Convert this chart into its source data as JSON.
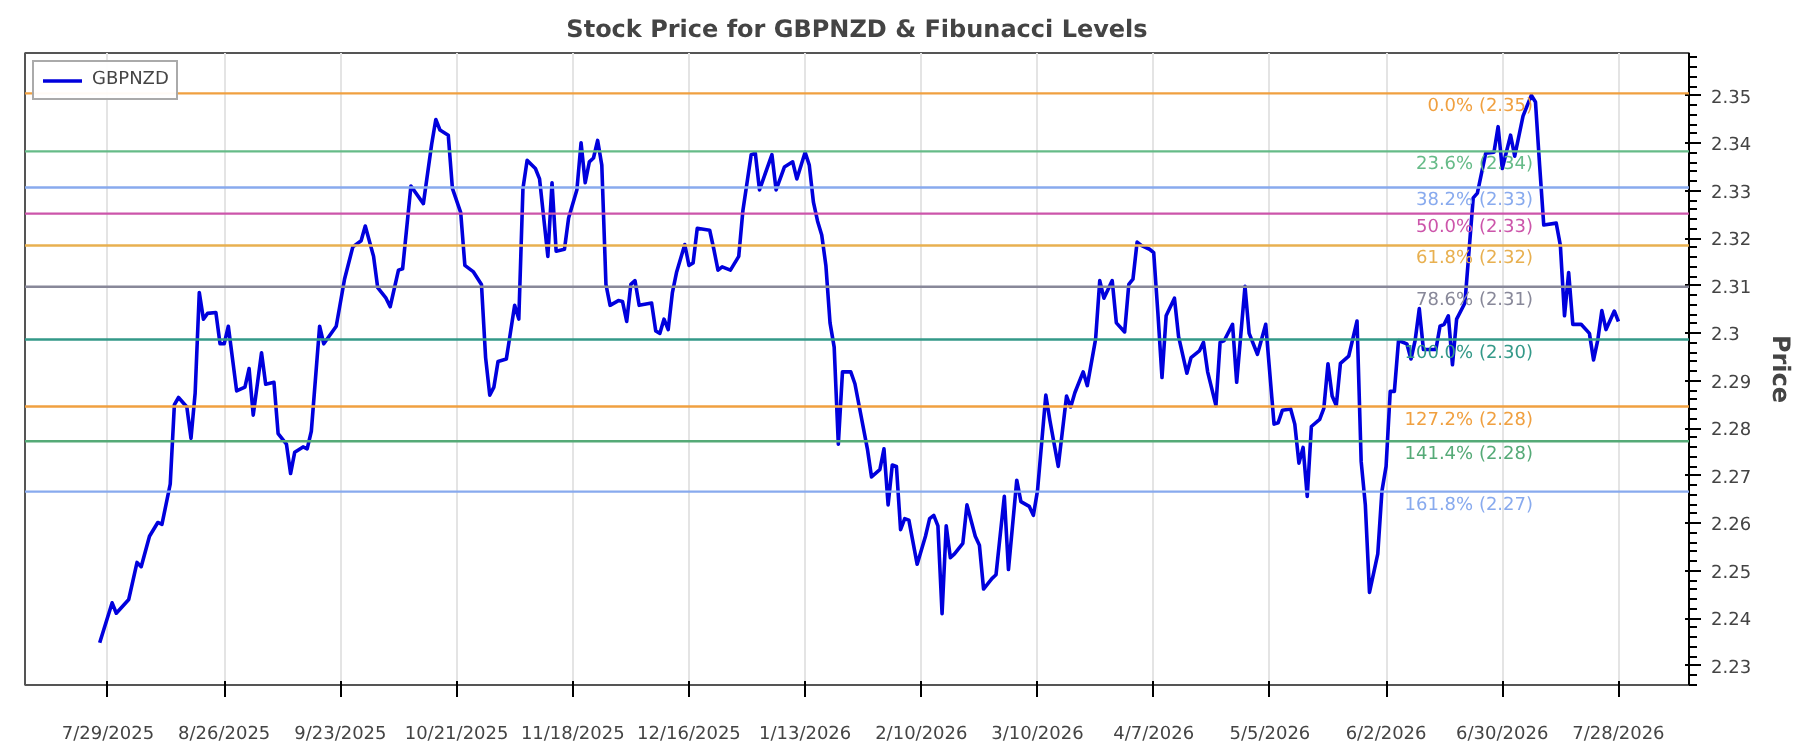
{
  "chart_data": {
    "type": "line",
    "title": "Stock Price for GBPNZD & Fibunacci Levels",
    "ylabel": "Price",
    "xlim": [
      "2025-07-09",
      "2026-08-14"
    ],
    "ylim": [
      2.226,
      2.359
    ],
    "xticks": [
      {
        "value": "2025-07-29",
        "label": "7/29/2025"
      },
      {
        "value": "2025-08-26",
        "label": "8/26/2025"
      },
      {
        "value": "2025-09-23",
        "label": "9/23/2025"
      },
      {
        "value": "2025-10-21",
        "label": "10/21/2025"
      },
      {
        "value": "2025-11-18",
        "label": "11/18/2025"
      },
      {
        "value": "2025-12-16",
        "label": "12/16/2025"
      },
      {
        "value": "2026-01-13",
        "label": "1/13/2026"
      },
      {
        "value": "2026-02-10",
        "label": "2/10/2026"
      },
      {
        "value": "2026-03-10",
        "label": "3/10/2026"
      },
      {
        "value": "2026-04-07",
        "label": "4/7/2026"
      },
      {
        "value": "2026-05-05",
        "label": "5/5/2026"
      },
      {
        "value": "2026-06-02",
        "label": "6/2/2026"
      },
      {
        "value": "2026-06-30",
        "label": "6/30/2026"
      },
      {
        "value": "2026-07-28",
        "label": "7/28/2026"
      }
    ],
    "yticks": [
      2.23,
      2.24,
      2.25,
      2.26,
      2.27,
      2.28,
      2.29,
      2.3,
      2.31,
      2.32,
      2.33,
      2.34,
      2.35
    ],
    "grid": "x",
    "legend": "top left",
    "line_style": "solid",
    "ref_lines": [
      {
        "axis": "y",
        "value": 2.3505,
        "label": "0.0% (2.35)",
        "color": "#f0a040"
      },
      {
        "axis": "y",
        "value": 2.3383,
        "label": "23.6% (2.34)",
        "color": "#66bb88"
      },
      {
        "axis": "y",
        "value": 2.3307,
        "label": "38.2% (2.33)",
        "color": "#88aaee"
      },
      {
        "axis": "y",
        "value": 2.3252,
        "label": "50.0% (2.33)",
        "color": "#cc55aa"
      },
      {
        "axis": "y",
        "value": 2.3185,
        "label": "61.8% (2.32)",
        "color": "#e8b050"
      },
      {
        "axis": "y",
        "value": 2.3098,
        "label": "78.6% (2.31)",
        "color": "#888899"
      },
      {
        "axis": "y",
        "value": 2.2987,
        "label": "100.0% (2.30)",
        "color": "#339988"
      },
      {
        "axis": "y",
        "value": 2.2846,
        "label": "127.2% (2.28)",
        "color": "#f0a040"
      },
      {
        "axis": "y",
        "value": 2.2773,
        "label": "141.4% (2.28)",
        "color": "#55aa77"
      },
      {
        "axis": "y",
        "value": 2.2667,
        "label": "161.8% (2.27)",
        "color": "#88aaee"
      }
    ],
    "series": [
      {
        "name": "GBPNZD",
        "color": "#0000dd",
        "x": [
          "2025-07-27",
          "2025-07-30",
          "2025-07-31",
          "2025-08-03",
          "2025-08-05",
          "2025-08-06",
          "2025-08-08",
          "2025-08-10",
          "2025-08-11",
          "2025-08-13",
          "2025-08-14",
          "2025-08-15",
          "2025-08-17",
          "2025-08-18",
          "2025-08-19",
          "2025-08-20",
          "2025-08-21",
          "2025-08-22",
          "2025-08-24",
          "2025-08-25",
          "2025-08-26",
          "2025-08-27",
          "2025-08-29",
          "2025-08-31",
          "2025-09-01",
          "2025-09-02",
          "2025-09-04",
          "2025-09-05",
          "2025-09-07",
          "2025-09-08",
          "2025-09-10",
          "2025-09-11",
          "2025-09-12",
          "2025-09-14",
          "2025-09-15",
          "2025-09-16",
          "2025-09-18",
          "2025-09-19",
          "2025-09-22",
          "2025-09-24",
          "2025-09-26",
          "2025-09-28",
          "2025-09-29",
          "2025-10-01",
          "2025-10-02",
          "2025-10-04",
          "2025-10-05",
          "2025-10-07",
          "2025-10-08",
          "2025-10-10",
          "2025-10-13",
          "2025-10-15",
          "2025-10-16",
          "2025-10-17",
          "2025-10-19",
          "2025-10-20",
          "2025-10-22",
          "2025-10-23",
          "2025-10-25",
          "2025-10-27",
          "2025-10-28",
          "2025-10-29",
          "2025-10-30",
          "2025-10-31",
          "2025-11-02",
          "2025-11-04",
          "2025-11-05",
          "2025-11-06",
          "2025-11-07",
          "2025-11-09",
          "2025-11-10",
          "2025-11-12",
          "2025-11-13",
          "2025-11-14",
          "2025-11-16",
          "2025-11-17",
          "2025-11-19",
          "2025-11-20",
          "2025-11-21",
          "2025-11-22",
          "2025-11-23",
          "2025-11-24",
          "2025-11-25",
          "2025-11-26",
          "2025-11-27",
          "2025-11-29",
          "2025-11-30",
          "2025-12-01",
          "2025-12-02",
          "2025-12-03",
          "2025-12-04",
          "2025-12-07",
          "2025-12-08",
          "2025-12-09",
          "2025-12-10",
          "2025-12-11",
          "2025-12-12",
          "2025-12-13",
          "2025-12-15",
          "2025-12-16",
          "2025-12-17",
          "2025-12-18",
          "2025-12-21",
          "2025-12-22",
          "2025-12-23",
          "2025-12-24",
          "2025-12-26",
          "2025-12-28",
          "2025-12-29",
          "2025-12-31",
          "2026-01-01",
          "2026-01-02",
          "2026-01-05",
          "2026-01-06",
          "2026-01-08",
          "2026-01-10",
          "2026-01-11",
          "2026-01-13",
          "2026-01-14",
          "2026-01-15",
          "2026-01-16",
          "2026-01-17",
          "2026-01-18",
          "2026-01-19",
          "2026-01-20",
          "2026-01-21",
          "2026-01-22",
          "2026-01-24",
          "2026-01-25",
          "2026-01-28",
          "2026-01-29",
          "2026-01-31",
          "2026-02-01",
          "2026-02-02",
          "2026-02-03",
          "2026-02-04",
          "2026-02-05",
          "2026-02-06",
          "2026-02-07",
          "2026-02-09",
          "2026-02-11",
          "2026-02-12",
          "2026-02-13",
          "2026-02-14",
          "2026-02-15",
          "2026-02-16",
          "2026-02-17",
          "2026-02-18",
          "2026-02-20",
          "2026-02-21",
          "2026-02-23",
          "2026-02-24",
          "2026-02-25",
          "2026-02-27",
          "2026-02-28",
          "2026-03-02",
          "2026-03-03",
          "2026-03-05",
          "2026-03-06",
          "2026-03-08",
          "2026-03-09",
          "2026-03-10",
          "2026-03-12",
          "2026-03-13",
          "2026-03-15",
          "2026-03-17",
          "2026-03-18",
          "2026-03-19",
          "2026-03-21",
          "2026-03-22",
          "2026-03-24",
          "2026-03-25",
          "2026-03-26",
          "2026-03-28",
          "2026-03-29",
          "2026-03-31",
          "2026-04-01",
          "2026-04-02",
          "2026-04-03",
          "2026-04-04",
          "2026-04-06",
          "2026-04-07",
          "2026-04-08",
          "2026-04-09",
          "2026-04-10",
          "2026-04-12",
          "2026-04-13",
          "2026-04-15",
          "2026-04-16",
          "2026-04-18",
          "2026-04-19",
          "2026-04-20",
          "2026-04-22",
          "2026-04-23",
          "2026-04-24",
          "2026-04-26",
          "2026-04-27",
          "2026-04-29",
          "2026-04-30",
          "2026-05-02",
          "2026-05-04",
          "2026-05-06",
          "2026-05-07",
          "2026-05-08",
          "2026-05-10",
          "2026-05-11",
          "2026-05-12",
          "2026-05-13",
          "2026-05-14",
          "2026-05-15",
          "2026-05-17",
          "2026-05-18",
          "2026-05-19",
          "2026-05-20",
          "2026-05-21",
          "2026-05-22",
          "2026-05-24",
          "2026-05-26",
          "2026-05-27",
          "2026-05-28",
          "2026-05-29",
          "2026-05-31",
          "2026-06-01",
          "2026-06-02",
          "2026-06-03",
          "2026-06-04",
          "2026-06-05",
          "2026-06-07",
          "2026-06-08",
          "2026-06-09",
          "2026-06-10",
          "2026-06-11",
          "2026-06-13",
          "2026-06-14",
          "2026-06-15",
          "2026-06-16",
          "2026-06-17",
          "2026-06-18",
          "2026-06-19",
          "2026-06-21",
          "2026-06-23",
          "2026-06-24",
          "2026-06-26",
          "2026-06-28",
          "2026-06-29",
          "2026-06-30",
          "2026-07-02",
          "2026-07-03",
          "2026-07-05",
          "2026-07-07",
          "2026-07-08",
          "2026-07-09",
          "2026-07-10",
          "2026-07-13",
          "2026-07-14",
          "2026-07-15",
          "2026-07-16",
          "2026-07-17",
          "2026-07-19",
          "2026-07-21",
          "2026-07-22",
          "2026-07-23",
          "2026-07-24",
          "2026-07-25",
          "2026-07-27",
          "2026-07-28"
        ],
        "values": [
          2.2349,
          2.2433,
          2.2411,
          2.244,
          2.2518,
          2.2509,
          2.2573,
          2.2602,
          2.2598,
          2.2683,
          2.285,
          2.2865,
          2.2845,
          2.2779,
          2.2874,
          2.3086,
          2.303,
          2.3042,
          2.3044,
          2.2978,
          2.2978,
          2.3015,
          2.2879,
          2.2887,
          2.2926,
          2.2828,
          2.2959,
          2.2893,
          2.2897,
          2.2789,
          2.2767,
          2.2705,
          2.275,
          2.2761,
          2.2757,
          2.2794,
          2.3015,
          2.2978,
          2.3015,
          2.3114,
          2.3182,
          2.3195,
          2.3226,
          2.3162,
          2.3096,
          2.3074,
          2.3056,
          2.3133,
          2.3136,
          2.331,
          2.3273,
          2.3398,
          2.345,
          2.3428,
          2.3417,
          2.3305,
          2.3254,
          2.3143,
          2.313,
          2.3103,
          2.2949,
          2.287,
          2.2887,
          2.2941,
          2.2946,
          2.3059,
          2.303,
          2.3305,
          2.3364,
          2.3347,
          2.3325,
          2.3162,
          2.3317,
          2.3173,
          2.3177,
          2.3243,
          2.3302,
          2.3401,
          2.3317,
          2.3361,
          2.3369,
          2.3406,
          2.3354,
          2.3103,
          2.3059,
          2.3069,
          2.3067,
          2.3025,
          2.3103,
          2.3111,
          2.3059,
          2.3064,
          2.3005,
          2.3,
          2.303,
          2.3008,
          2.3085,
          2.3128,
          2.3187,
          2.3143,
          2.3148,
          2.3221,
          2.3217,
          2.3177,
          2.3133,
          2.314,
          2.3133,
          2.3162,
          2.3258,
          2.3376,
          2.3379,
          2.3302,
          2.3376,
          2.3302,
          2.335,
          2.3361,
          2.3325,
          2.3381,
          2.3354,
          2.3276,
          2.3236,
          2.3207,
          2.3143,
          2.3022,
          2.2971,
          2.2767,
          2.2919,
          2.2919,
          2.2894,
          2.2757,
          2.2698,
          2.2713,
          2.2757,
          2.2639,
          2.2723,
          2.272,
          2.2587,
          2.261,
          2.2607,
          2.2514,
          2.2573,
          2.261,
          2.2617,
          2.2595,
          2.241,
          2.2595,
          2.2528,
          2.2536,
          2.2558,
          2.2639,
          2.2573,
          2.2554,
          2.2462,
          2.2484,
          2.2492,
          2.2657,
          2.2503,
          2.2691,
          2.2646,
          2.2636,
          2.2617,
          2.2669,
          2.287,
          2.2816,
          2.272,
          2.2868,
          2.2845,
          2.2875,
          2.2919,
          2.289,
          2.2988,
          2.3111,
          2.3074,
          2.3111,
          2.3022,
          2.3003,
          2.3103,
          2.3114,
          2.3192,
          2.3185,
          2.3177,
          2.317,
          2.3044,
          2.2907,
          2.3037,
          2.3074,
          2.2993,
          2.2916,
          2.2949,
          2.2963,
          2.2981,
          2.2919,
          2.2848,
          2.2981,
          2.2985,
          2.3019,
          2.2897,
          2.3099,
          2.3,
          2.2956,
          2.3019,
          2.2809,
          2.2812,
          2.2838,
          2.2841,
          2.2809,
          2.2727,
          2.276,
          2.2657,
          2.2804,
          2.2819,
          2.2842,
          2.2936,
          2.2868,
          2.2848,
          2.2937,
          2.2952,
          2.3026,
          2.273,
          2.2639,
          2.2455,
          2.2536,
          2.2668,
          2.272,
          2.2878,
          2.2878,
          2.2985,
          2.2978,
          2.2946,
          2.2985,
          2.3052,
          2.2966,
          2.2966,
          2.2966,
          2.3015,
          2.3019,
          2.3037,
          2.2934,
          2.303,
          2.3064,
          2.3285,
          2.3295,
          2.3379,
          2.3381,
          2.3435,
          2.3347,
          2.3417,
          2.3373,
          2.3457,
          2.3501,
          2.3487,
          2.3354,
          2.3228,
          2.3232,
          2.3185,
          2.3037,
          2.3128,
          2.3019,
          2.3019,
          2.3,
          2.2944,
          2.2985,
          2.3048,
          2.3008,
          2.3047,
          2.3025
        ]
      }
    ]
  }
}
